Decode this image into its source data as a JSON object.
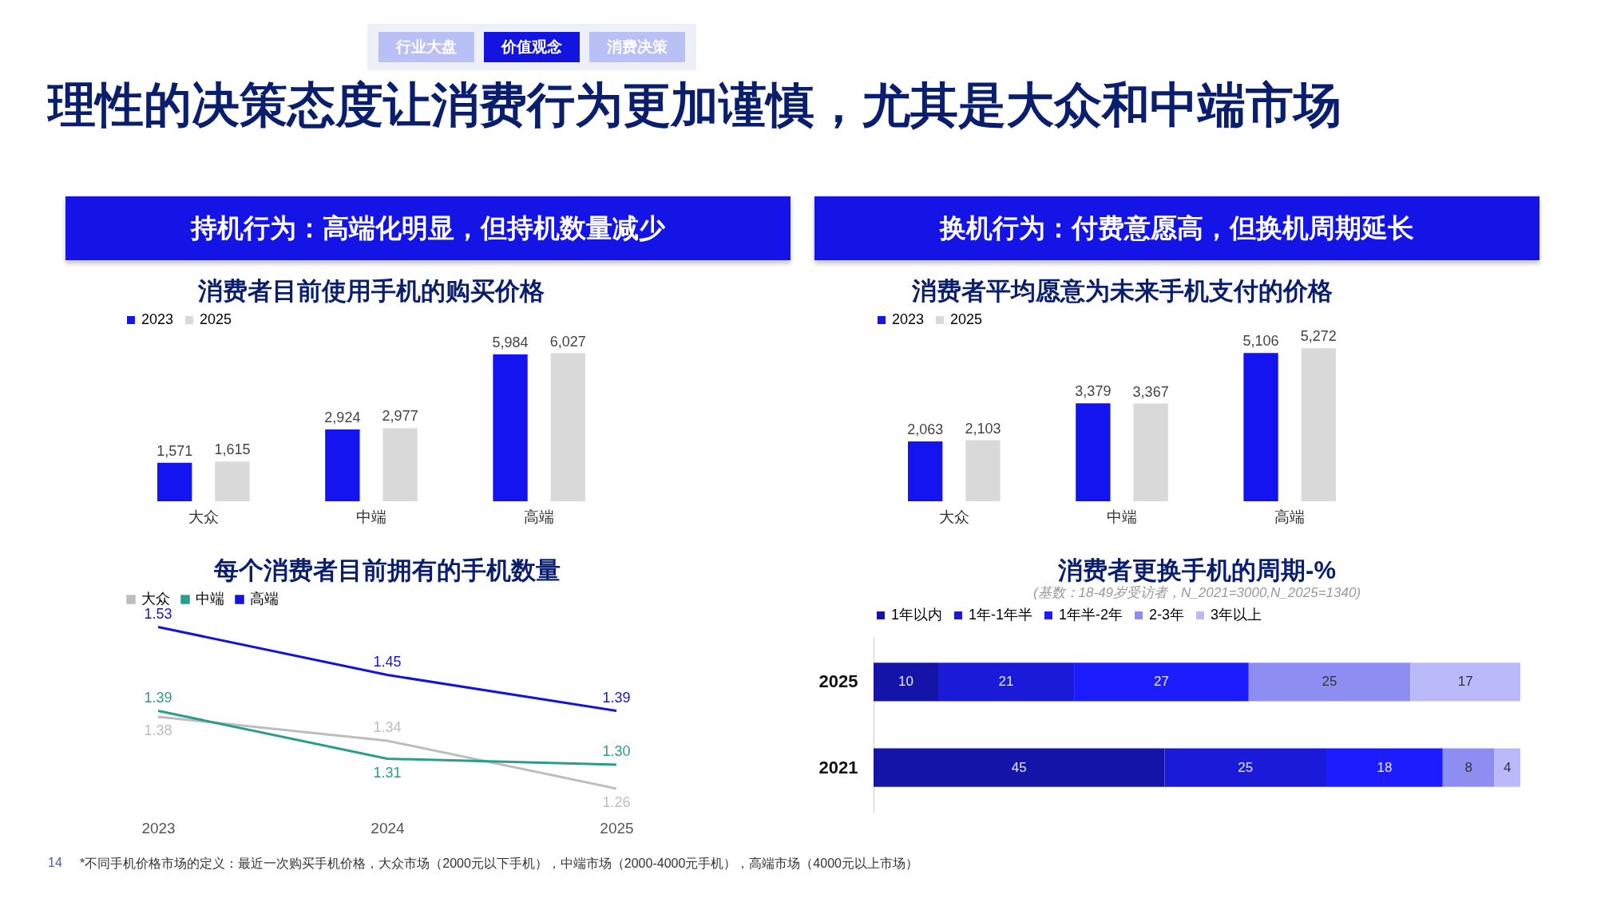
{
  "chart_data": [
    {
      "type": "other",
      "title": "理性的决策态度让消费行为更加谨慎，尤其是大众和中端市场",
      "annotations": [
        "行业大盘",
        "价值观念",
        "消费决策",
        "持机行为：高端化明显，但持机数量减少",
        "换机行为：付费意愿高，但换机周期延长",
        "14",
        "*不同手机价格市场的定义：最近一次购买手机价格，大众市场（2000元以下手机），中端市场（2000-4000元手机），高端市场（4000元以上市场）"
      ]
    },
    {
      "type": "bar",
      "title": "消费者目前使用手机的购买价格",
      "categories": [
        "大众",
        "中端",
        "高端"
      ],
      "series": [
        {
          "name": "2023",
          "color": "#1414f0",
          "values": [
            1571,
            2924,
            5984
          ],
          "value_labels": [
            "1,571",
            "2,924",
            "5,984"
          ]
        },
        {
          "name": "2025",
          "color": "#d9d9d9",
          "values": [
            1615,
            2977,
            6027
          ],
          "value_labels": [
            "1,615",
            "2,977",
            "6,027"
          ]
        }
      ],
      "legend": "top",
      "tick_labels": "x"
    },
    {
      "type": "bar",
      "title": "消费者平均愿意为未来手机支付的价格",
      "categories": [
        "大众",
        "中端",
        "高端"
      ],
      "series": [
        {
          "name": "2023",
          "color": "#1414f0",
          "values": [
            2063,
            3379,
            5106
          ],
          "value_labels": [
            "2,063",
            "3,379",
            "5,106"
          ]
        },
        {
          "name": "2025",
          "color": "#d9d9d9",
          "values": [
            2103,
            3367,
            5272
          ],
          "value_labels": [
            "2,103",
            "3,367",
            "5,272"
          ]
        }
      ],
      "legend": "top",
      "tick_labels": "x"
    },
    {
      "type": "line",
      "title": "每个消费者目前拥有的手机数量",
      "categories": [
        "2023",
        "2024",
        "2025"
      ],
      "series": [
        {
          "name": "大众",
          "color": "#bdbdbd",
          "values": [
            1.38,
            1.34,
            1.26
          ],
          "value_labels": [
            "1.38",
            "1.34",
            "1.26"
          ]
        },
        {
          "name": "中端",
          "color": "#2a9d8f",
          "values": [
            1.39,
            1.31,
            1.3
          ],
          "value_labels": [
            "1.39",
            "1.31",
            "1.30"
          ]
        },
        {
          "name": "高端",
          "color": "#1414d8",
          "values": [
            1.53,
            1.45,
            1.39
          ],
          "value_labels": [
            "1.53",
            "1.45",
            "1.39"
          ]
        }
      ],
      "legend": "top",
      "tick_labels": "x"
    },
    {
      "type": "bar",
      "orientation": "horizontal",
      "stacked": true,
      "title": "消费者更换手机的周期-%",
      "subtitle": "(基数：18-49岁受访者，N_2021=3000,N_2025=1340)",
      "categories": [
        "2025",
        "2021"
      ],
      "series": [
        {
          "name": "1年以内",
          "color": "#1414a8",
          "values": [
            10,
            45
          ]
        },
        {
          "name": "1年-1年半",
          "color": "#1a1ad8",
          "values": [
            21,
            25
          ]
        },
        {
          "name": "1年半-2年",
          "color": "#1c1cff",
          "values": [
            27,
            18
          ]
        },
        {
          "name": "2-3年",
          "color": "#8e8ef2",
          "values": [
            25,
            8
          ]
        },
        {
          "name": "3年以上",
          "color": "#babafa",
          "values": [
            17,
            4
          ]
        }
      ],
      "data_labels": true,
      "legend": "top",
      "tick_labels": "y"
    }
  ]
}
